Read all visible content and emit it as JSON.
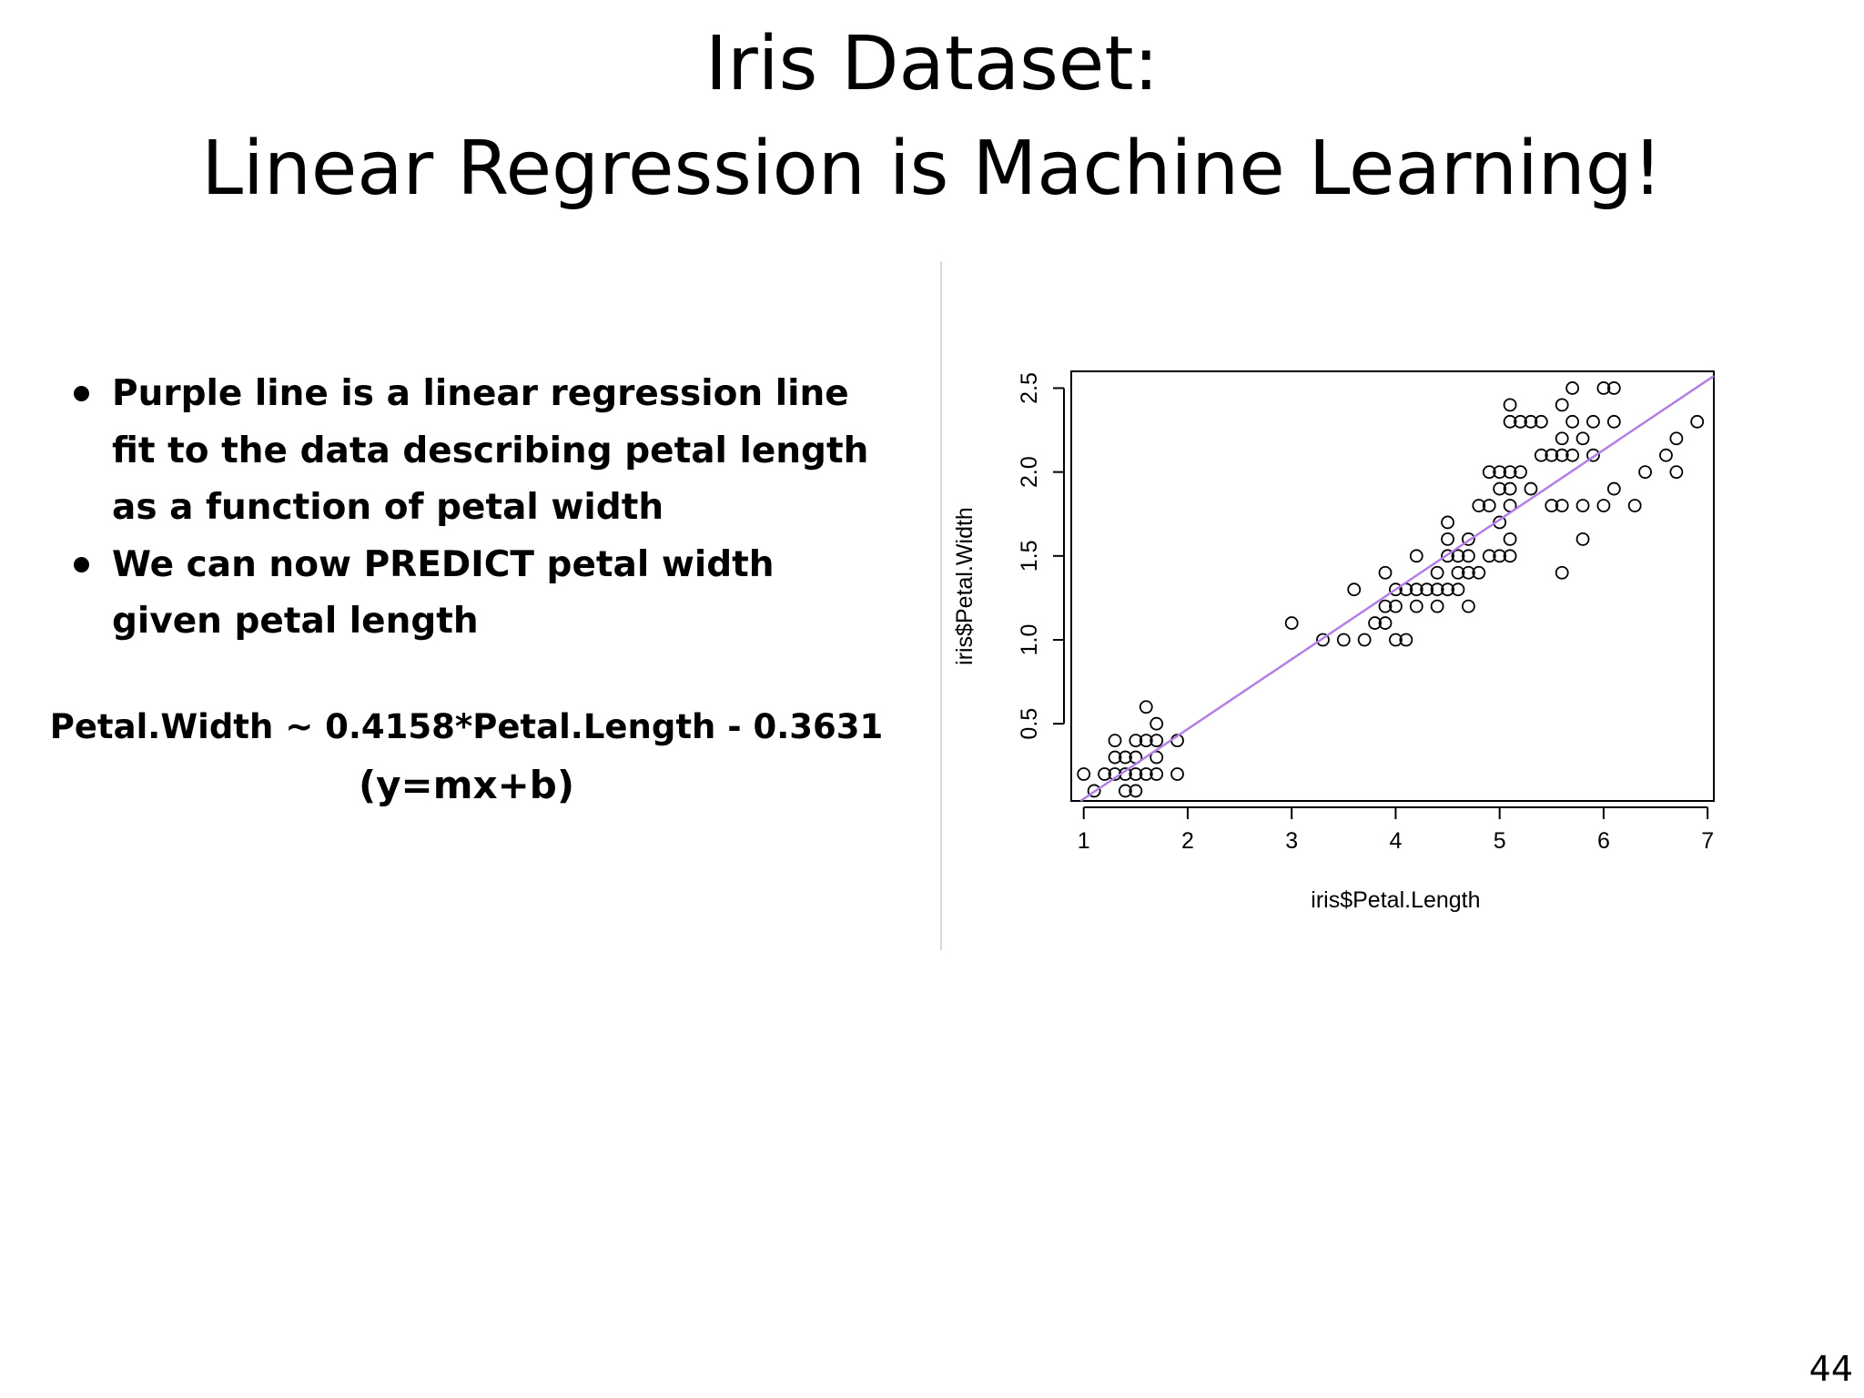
{
  "slide": {
    "title_line1": "Iris Dataset:",
    "title_line2": "Linear Regression is Machine Learning!",
    "bullets": [
      {
        "lines": [
          "Purple line is a linear regression line",
          "fit to the data describing petal length",
          "as a function of petal width"
        ]
      },
      {
        "lines": [
          "We can now PREDICT petal width",
          "given petal length"
        ]
      }
    ],
    "equation": "Petal.Width ~ 0.4158*Petal.Length - 0.3631",
    "equation_form": "(y=mx+b)",
    "slide_number": "44"
  },
  "chart_data": {
    "type": "scatter",
    "xlabel": "iris$Petal.Length",
    "ylabel": "iris$Petal.Width",
    "xticks": [
      1,
      2,
      3,
      4,
      5,
      6,
      7
    ],
    "yticks": [
      "0.5",
      "1.0",
      "1.5",
      "2.0",
      "2.5"
    ],
    "xlim": [
      0.88,
      7.06
    ],
    "ylim": [
      0.04,
      2.6
    ],
    "grid": false,
    "regression_line": {
      "slope": 0.4158,
      "intercept": -0.3631,
      "color": "#b57ee5"
    },
    "point_color": "#000000",
    "points": [
      [
        1.0,
        0.2
      ],
      [
        1.1,
        0.1
      ],
      [
        1.2,
        0.2
      ],
      [
        1.3,
        0.2
      ],
      [
        1.3,
        0.3
      ],
      [
        1.3,
        0.4
      ],
      [
        1.4,
        0.1
      ],
      [
        1.4,
        0.2
      ],
      [
        1.4,
        0.3
      ],
      [
        1.5,
        0.1
      ],
      [
        1.5,
        0.2
      ],
      [
        1.5,
        0.3
      ],
      [
        1.5,
        0.4
      ],
      [
        1.6,
        0.2
      ],
      [
        1.6,
        0.4
      ],
      [
        1.6,
        0.6
      ],
      [
        1.7,
        0.2
      ],
      [
        1.7,
        0.3
      ],
      [
        1.7,
        0.4
      ],
      [
        1.7,
        0.5
      ],
      [
        1.9,
        0.2
      ],
      [
        1.9,
        0.4
      ],
      [
        3.0,
        1.1
      ],
      [
        3.3,
        1.0
      ],
      [
        3.5,
        1.0
      ],
      [
        3.6,
        1.3
      ],
      [
        3.7,
        1.0
      ],
      [
        3.8,
        1.1
      ],
      [
        3.9,
        1.1
      ],
      [
        3.9,
        1.2
      ],
      [
        3.9,
        1.4
      ],
      [
        4.0,
        1.0
      ],
      [
        4.0,
        1.2
      ],
      [
        4.0,
        1.3
      ],
      [
        4.1,
        1.0
      ],
      [
        4.1,
        1.3
      ],
      [
        4.2,
        1.2
      ],
      [
        4.2,
        1.3
      ],
      [
        4.2,
        1.5
      ],
      [
        4.3,
        1.3
      ],
      [
        4.4,
        1.2
      ],
      [
        4.4,
        1.3
      ],
      [
        4.4,
        1.4
      ],
      [
        4.5,
        1.3
      ],
      [
        4.5,
        1.5
      ],
      [
        4.5,
        1.6
      ],
      [
        4.5,
        1.7
      ],
      [
        4.6,
        1.3
      ],
      [
        4.6,
        1.4
      ],
      [
        4.6,
        1.5
      ],
      [
        4.7,
        1.2
      ],
      [
        4.7,
        1.4
      ],
      [
        4.7,
        1.5
      ],
      [
        4.7,
        1.6
      ],
      [
        4.8,
        1.4
      ],
      [
        4.8,
        1.8
      ],
      [
        4.9,
        1.5
      ],
      [
        4.9,
        1.8
      ],
      [
        4.9,
        2.0
      ],
      [
        5.0,
        1.5
      ],
      [
        5.0,
        1.7
      ],
      [
        5.0,
        1.9
      ],
      [
        5.0,
        2.0
      ],
      [
        5.1,
        1.5
      ],
      [
        5.1,
        1.6
      ],
      [
        5.1,
        1.8
      ],
      [
        5.1,
        1.9
      ],
      [
        5.1,
        2.0
      ],
      [
        5.1,
        2.3
      ],
      [
        5.1,
        2.4
      ],
      [
        5.2,
        2.0
      ],
      [
        5.2,
        2.3
      ],
      [
        5.3,
        1.9
      ],
      [
        5.3,
        2.3
      ],
      [
        5.4,
        2.1
      ],
      [
        5.4,
        2.3
      ],
      [
        5.5,
        2.1
      ],
      [
        5.5,
        1.8
      ],
      [
        5.6,
        1.4
      ],
      [
        5.6,
        1.8
      ],
      [
        5.6,
        2.1
      ],
      [
        5.6,
        2.2
      ],
      [
        5.6,
        2.4
      ],
      [
        5.7,
        2.1
      ],
      [
        5.7,
        2.3
      ],
      [
        5.7,
        2.5
      ],
      [
        5.8,
        1.6
      ],
      [
        5.8,
        1.8
      ],
      [
        5.8,
        2.2
      ],
      [
        5.9,
        2.1
      ],
      [
        5.9,
        2.3
      ],
      [
        6.0,
        1.8
      ],
      [
        6.0,
        2.5
      ],
      [
        6.1,
        1.9
      ],
      [
        6.1,
        2.3
      ],
      [
        6.1,
        2.5
      ],
      [
        6.3,
        1.8
      ],
      [
        6.4,
        2.0
      ],
      [
        6.6,
        2.1
      ],
      [
        6.7,
        2.0
      ],
      [
        6.7,
        2.2
      ],
      [
        6.9,
        2.3
      ]
    ]
  }
}
